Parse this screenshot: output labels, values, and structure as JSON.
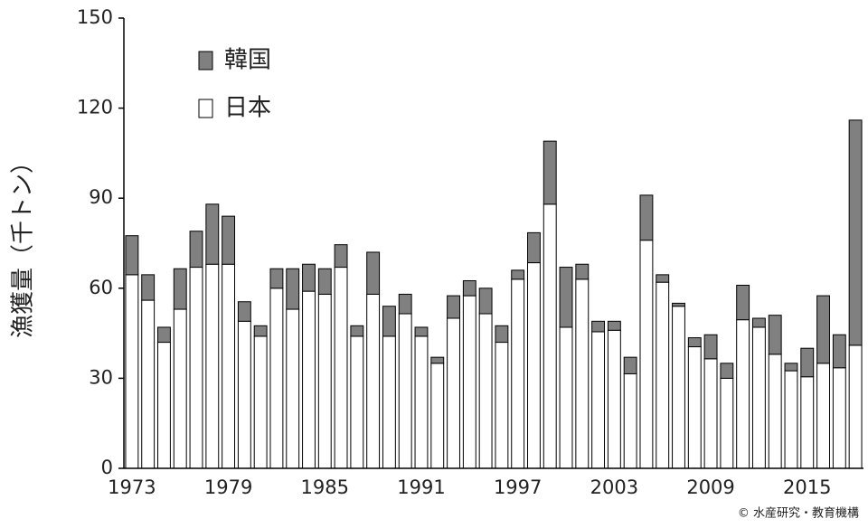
{
  "chart_data": {
    "type": "stacked-bar",
    "y_label": "漁獲量（千トン）",
    "source": "© 水産研究・教育機構",
    "categories": [
      "1973",
      null,
      null,
      null,
      null,
      null,
      "1979",
      null,
      null,
      null,
      null,
      null,
      "1985",
      null,
      null,
      null,
      null,
      null,
      "1991",
      null,
      null,
      null,
      null,
      null,
      "1997",
      null,
      null,
      null,
      null,
      null,
      "2003",
      null,
      null,
      null,
      null,
      null,
      "2009",
      null,
      null,
      null,
      null,
      null,
      "2015",
      null,
      null,
      null
    ],
    "series": [
      {
        "name": "韓国",
        "color": "#808080",
        "values": [
          13,
          8.5,
          5,
          13.5,
          12,
          20,
          16,
          6.5,
          3.5,
          6.5,
          13.5,
          9,
          8.5,
          7.5,
          3.5,
          14,
          10,
          6.5,
          3,
          2,
          7.5,
          5,
          8.5,
          5.5,
          3,
          10,
          21,
          20,
          5,
          3.5,
          3,
          5.5,
          15,
          2.5,
          1,
          3,
          8,
          5,
          11.5,
          3,
          13,
          2.5,
          9.5,
          22.5,
          11,
          75
        ]
      },
      {
        "name": "日本",
        "color": "#ffffff",
        "values": [
          64.5,
          56,
          42,
          53,
          67,
          68,
          68,
          49,
          44,
          60,
          53,
          59,
          58,
          67,
          44,
          58,
          44,
          51.5,
          44,
          35,
          50,
          57.5,
          51.5,
          42,
          63,
          68.5,
          88,
          47,
          63,
          45.5,
          46,
          31.5,
          76,
          62,
          54,
          40.5,
          36.5,
          30,
          49.5,
          47,
          38,
          32.5,
          30.5,
          35,
          33.5,
          41
        ]
      }
    ],
    "ylim": [
      0,
      150
    ],
    "yticks": [
      0,
      30,
      60,
      90,
      120,
      150
    ],
    "grid": false,
    "legend": "upper-left"
  }
}
